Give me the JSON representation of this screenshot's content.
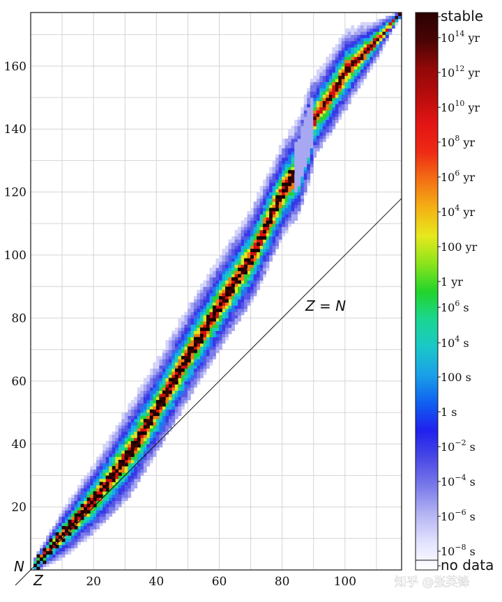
{
  "chart_data": {
    "type": "heatmap",
    "title": "",
    "xlabel": "Z",
    "ylabel": "N",
    "xlim": [
      0,
      118
    ],
    "ylim": [
      0,
      177
    ],
    "x_ticks": [
      "20",
      "40",
      "60",
      "80",
      "100"
    ],
    "y_ticks": [
      "20",
      "40",
      "60",
      "80",
      "100",
      "120",
      "140",
      "160"
    ],
    "grid": true,
    "annotation": "Z = N",
    "band_centerline": [
      [
        0,
        0
      ],
      [
        10,
        11
      ],
      [
        20,
        22
      ],
      [
        30,
        35
      ],
      [
        40,
        51
      ],
      [
        50,
        68
      ],
      [
        60,
        84
      ],
      [
        70,
        99
      ],
      [
        80,
        120
      ],
      [
        85,
        127
      ],
      [
        90,
        143
      ],
      [
        95,
        150
      ],
      [
        100,
        158
      ],
      [
        110,
        168
      ],
      [
        117,
        176
      ]
    ],
    "stable_line": [
      [
        1,
        1
      ],
      [
        10,
        11
      ],
      [
        20,
        22
      ],
      [
        30,
        35
      ],
      [
        40,
        51
      ],
      [
        50,
        68
      ],
      [
        60,
        84
      ],
      [
        70,
        99
      ],
      [
        80,
        120
      ],
      [
        83,
        126
      ]
    ],
    "colorbar": {
      "labels": [
        {
          "base": "stable",
          "exp": "",
          "unit": ""
        },
        {
          "base": "10",
          "exp": "14",
          "unit": " yr"
        },
        {
          "base": "10",
          "exp": "12",
          "unit": " yr"
        },
        {
          "base": "10",
          "exp": "10",
          "unit": " yr"
        },
        {
          "base": "10",
          "exp": "8",
          "unit": " yr"
        },
        {
          "base": "10",
          "exp": "6",
          "unit": " yr"
        },
        {
          "base": "10",
          "exp": "4",
          "unit": " yr"
        },
        {
          "base": "100 yr",
          "exp": "",
          "unit": ""
        },
        {
          "base": "1 yr",
          "exp": "",
          "unit": ""
        },
        {
          "base": "10",
          "exp": "6",
          "unit": " s"
        },
        {
          "base": "10",
          "exp": "4",
          "unit": " s"
        },
        {
          "base": "100 s",
          "exp": "",
          "unit": ""
        },
        {
          "base": "1 s",
          "exp": "",
          "unit": ""
        },
        {
          "base": "10",
          "exp": "−2",
          "unit": " s"
        },
        {
          "base": "10",
          "exp": "−4",
          "unit": " s"
        },
        {
          "base": "10",
          "exp": "−6",
          "unit": " s"
        },
        {
          "base": "10",
          "exp": "−8",
          "unit": " s"
        },
        {
          "base": "no data",
          "exp": "",
          "unit": ""
        }
      ],
      "colors": [
        "#ffffff",
        "#e2e2ff",
        "#b4b4f4",
        "#7a7aea",
        "#4a4ae6",
        "#2020ee",
        "#1060f0",
        "#1aa0e8",
        "#19c8c8",
        "#1ad690",
        "#22d42a",
        "#8ce41c",
        "#e8e81c",
        "#f4b014",
        "#f47014",
        "#ee2a14",
        "#e41414",
        "#b80c0c",
        "#920808",
        "#4a0404",
        "#2a0202"
      ]
    }
  },
  "watermark": "知乎 @张英锋"
}
